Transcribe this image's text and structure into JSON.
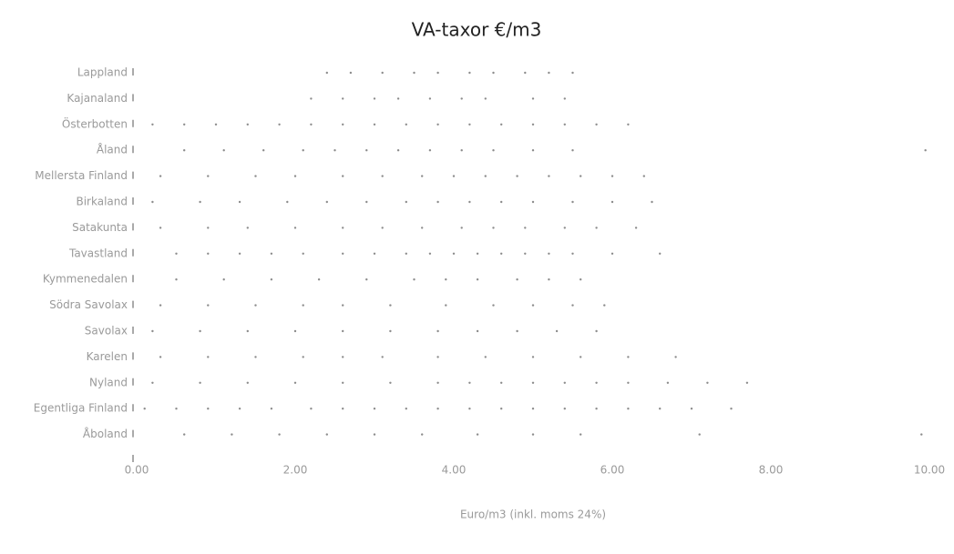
{
  "chart_data": {
    "type": "scatter",
    "title": "VA-taxor €/m3",
    "xlabel": "Euro/m3 (inkl. moms 24%)",
    "categories": [
      "Lappland",
      "Kajanaland",
      "Österbotten",
      "Åland",
      "Mellersta Finland",
      "Birkaland",
      "Satakunta",
      "Tavastland",
      "Kymmenedalen",
      "Södra Savolax",
      "Savolax",
      "Karelen",
      "Nyland",
      "Egentliga Finland",
      "Åboland"
    ],
    "values": [
      [
        2.4,
        2.7,
        3.1,
        3.5,
        3.8,
        4.2,
        4.5,
        4.9,
        5.2,
        5.5
      ],
      [
        2.2,
        2.6,
        3.0,
        3.3,
        3.7,
        4.1,
        4.4,
        5.0,
        5.4
      ],
      [
        0.2,
        0.6,
        1.0,
        1.4,
        1.8,
        2.2,
        2.6,
        3.0,
        3.4,
        3.8,
        4.2,
        4.6,
        5.0,
        5.4,
        5.8,
        6.2
      ],
      [
        0.6,
        1.1,
        1.6,
        2.1,
        2.5,
        2.9,
        3.3,
        3.7,
        4.1,
        4.5,
        5.0,
        5.5,
        9.95
      ],
      [
        0.3,
        0.9,
        1.5,
        2.0,
        2.6,
        3.1,
        3.6,
        4.0,
        4.4,
        4.8,
        5.2,
        5.6,
        6.0,
        6.4
      ],
      [
        0.2,
        0.8,
        1.3,
        1.9,
        2.4,
        2.9,
        3.4,
        3.8,
        4.2,
        4.6,
        5.0,
        5.5,
        6.0,
        6.5
      ],
      [
        0.3,
        0.9,
        1.4,
        2.0,
        2.6,
        3.1,
        3.6,
        4.1,
        4.5,
        4.9,
        5.4,
        5.8,
        6.3
      ],
      [
        0.5,
        0.9,
        1.3,
        1.7,
        2.1,
        2.6,
        3.0,
        3.4,
        3.7,
        4.0,
        4.3,
        4.6,
        4.9,
        5.2,
        5.5,
        6.0,
        6.6
      ],
      [
        0.5,
        1.1,
        1.7,
        2.3,
        2.9,
        3.5,
        3.9,
        4.3,
        4.8,
        5.2,
        5.6
      ],
      [
        0.3,
        0.9,
        1.5,
        2.1,
        2.6,
        3.2,
        3.9,
        4.5,
        5.0,
        5.5,
        5.9
      ],
      [
        0.2,
        0.8,
        1.4,
        2.0,
        2.6,
        3.2,
        3.8,
        4.3,
        4.8,
        5.3,
        5.8
      ],
      [
        0.3,
        0.9,
        1.5,
        2.1,
        2.6,
        3.1,
        3.8,
        4.4,
        5.0,
        5.6,
        6.2,
        6.8
      ],
      [
        0.2,
        0.8,
        1.4,
        2.0,
        2.6,
        3.2,
        3.8,
        4.2,
        4.6,
        5.0,
        5.4,
        5.8,
        6.2,
        6.7,
        7.2,
        7.7
      ],
      [
        0.1,
        0.5,
        0.9,
        1.3,
        1.7,
        2.2,
        2.6,
        3.0,
        3.4,
        3.8,
        4.2,
        4.6,
        5.0,
        5.4,
        5.8,
        6.2,
        6.6,
        7.0,
        7.5
      ],
      [
        0.6,
        1.2,
        1.8,
        2.4,
        3.0,
        3.6,
        4.3,
        5.0,
        5.6,
        7.1,
        9.9
      ]
    ],
    "color": "#8c8c8c",
    "xlim": [
      0,
      10
    ],
    "xticks": [
      {
        "value": 0,
        "label": "0.00"
      },
      {
        "value": 2,
        "label": "2.00"
      },
      {
        "value": 4,
        "label": "4.00"
      },
      {
        "value": 6,
        "label": "6.00"
      },
      {
        "value": 8,
        "label": "8.00"
      },
      {
        "value": 10,
        "label": "10.00"
      }
    ]
  }
}
